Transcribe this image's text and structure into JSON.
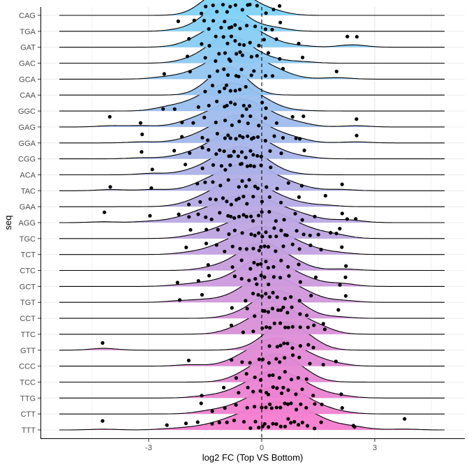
{
  "chart_data": {
    "type": "ridgeline",
    "xlabel": "log2 FC (Top VS Bottom)",
    "ylabel": "seq",
    "xlim": [
      -5.8,
      5.3
    ],
    "x_ticks": [
      {
        "value": -3,
        "label": "-3"
      },
      {
        "value": 0,
        "label": "0"
      },
      {
        "value": 3,
        "label": "3"
      }
    ],
    "reference_line": {
      "x": 0,
      "style": "dashed"
    },
    "grid": true,
    "fill_gradient": {
      "top_color": "#7fd3f7",
      "bottom_color": "#f47ccf"
    },
    "point_color": "#000000",
    "line_color": "#000000",
    "series": [
      {
        "label": "CAG",
        "mean": -0.9,
        "sd": 0.55,
        "points": [
          -1.6,
          -1.5,
          -1.3,
          -1.2,
          -1.0,
          -0.9,
          -0.8,
          -0.7,
          -0.5,
          -0.4,
          -0.3,
          -0.1,
          0.1,
          0.3,
          0.5
        ]
      },
      {
        "label": "TGA",
        "mean": -1.0,
        "sd": 0.5,
        "points": [
          -2.2,
          -1.8,
          -1.5,
          -1.4,
          -1.3,
          -1.1,
          -1.0,
          -0.9,
          -0.8,
          -0.7,
          -0.6,
          -0.4,
          -0.2,
          0.1,
          0.3,
          0.5
        ]
      },
      {
        "label": "GAT",
        "mean": -0.8,
        "sd": 0.7,
        "points": [
          -1.9,
          -1.6,
          -1.4,
          -1.2,
          -1.0,
          -0.9,
          -0.8,
          -0.7,
          -0.6,
          -0.5,
          -0.3,
          -0.1,
          0.1,
          0.4,
          1.0,
          2.3,
          2.5
        ]
      },
      {
        "label": "GAC",
        "mean": -0.9,
        "sd": 0.6,
        "points": [
          -2.0,
          -1.5,
          -1.2,
          -1.1,
          -1.0,
          -0.9,
          -0.8,
          -0.7,
          -0.6,
          -0.5,
          -0.3,
          -0.1,
          0.2,
          0.5,
          1.1
        ]
      },
      {
        "label": "GCA",
        "mean": -0.7,
        "sd": 0.8,
        "points": [
          -2.6,
          -1.9,
          -1.4,
          -1.2,
          -1.0,
          -0.9,
          -0.7,
          -0.6,
          -0.5,
          -0.3,
          -0.2,
          0.1,
          0.3,
          0.6,
          2.0
        ]
      },
      {
        "label": "CAA",
        "mean": -0.9,
        "sd": 0.5,
        "points": [
          -1.5,
          -1.3,
          -1.1,
          -1.0,
          -0.9,
          -0.8,
          -0.7,
          -0.6,
          -0.4
        ]
      },
      {
        "label": "GGC",
        "mean": -0.9,
        "sd": 0.8,
        "points": [
          -2.6,
          -2.3,
          -1.7,
          -1.4,
          -1.2,
          -1.0,
          -0.9,
          -0.8,
          -0.7,
          -0.5,
          -0.4,
          -0.3,
          0.0,
          0.1
        ]
      },
      {
        "label": "GAG",
        "mean": -0.6,
        "sd": 0.8,
        "points": [
          -4.0,
          -3.2,
          -2.1,
          -1.8,
          -1.5,
          -1.2,
          -1.0,
          -0.8,
          -0.6,
          -0.5,
          -0.4,
          -0.3,
          -0.1,
          0.1,
          0.4,
          0.8,
          1.1,
          2.5
        ]
      },
      {
        "label": "GGA",
        "mean": -0.6,
        "sd": 0.8,
        "points": [
          -3.2,
          -2.1,
          -1.6,
          -1.4,
          -1.2,
          -1.0,
          -0.9,
          -0.8,
          -0.7,
          -0.6,
          -0.5,
          -0.4,
          -0.3,
          -0.2,
          -0.1,
          0.1,
          0.3,
          0.6,
          0.9,
          1.0,
          2.5
        ]
      },
      {
        "label": "CGG",
        "mean": -0.6,
        "sd": 0.8,
        "points": [
          -3.2,
          -2.3,
          -1.9,
          -1.6,
          -1.4,
          -1.2,
          -1.1,
          -1.0,
          -0.9,
          -0.8,
          -0.7,
          -0.6,
          -0.5,
          -0.4,
          -0.3,
          -0.2,
          -0.1,
          0.0,
          0.2,
          0.5,
          1.1
        ]
      },
      {
        "label": "ACA",
        "mean": -0.6,
        "sd": 0.7,
        "points": [
          -2.9,
          -2.0,
          -1.6,
          -1.3,
          -1.1,
          -1.0,
          -0.8,
          -0.6,
          -0.5,
          -0.4,
          -0.3,
          -0.2,
          0.0,
          0.2
        ]
      },
      {
        "label": "TAC",
        "mean": -0.4,
        "sd": 0.8,
        "points": [
          -4.0,
          -2.9,
          -1.7,
          -1.5,
          -1.3,
          -1.1,
          -0.9,
          -0.6,
          -0.5,
          -0.4,
          -0.3,
          -0.2,
          -0.1,
          0.1,
          0.4,
          0.7,
          1.1,
          2.1
        ]
      },
      {
        "label": "GAA",
        "mean": -0.5,
        "sd": 0.8,
        "points": [
          -1.9,
          -1.6,
          -1.4,
          -1.2,
          -1.0,
          -0.9,
          -0.8,
          -0.7,
          -0.6,
          -0.5,
          -0.4,
          -0.2,
          0.0,
          0.2,
          0.5,
          1.0,
          1.7
        ]
      },
      {
        "label": "AGG",
        "mean": -0.4,
        "sd": 1.0,
        "points": [
          -4.2,
          -3.0,
          -2.2,
          -1.9,
          -1.7,
          -1.5,
          -1.3,
          -1.1,
          -0.9,
          -0.8,
          -0.7,
          -0.6,
          -0.5,
          -0.4,
          -0.3,
          -0.2,
          -0.1,
          0.0,
          0.2,
          0.4,
          0.6,
          0.9,
          1.1,
          1.4,
          2.1,
          2.3,
          2.5
        ]
      },
      {
        "label": "TGC",
        "mean": 0.0,
        "sd": 0.9,
        "points": [
          -1.9,
          -1.5,
          -1.2,
          -0.9,
          -0.7,
          -0.5,
          -0.3,
          -0.2,
          -0.1,
          0.0,
          0.1,
          0.2,
          0.3,
          0.4,
          0.5,
          0.6,
          0.7,
          0.9,
          1.1,
          1.3,
          1.5,
          1.8,
          2.0,
          2.1
        ]
      },
      {
        "label": "TCT",
        "mean": 0.0,
        "sd": 0.8,
        "points": [
          -2.0,
          -1.5,
          -1.2,
          -1.0,
          -0.8,
          -0.6,
          -0.4,
          -0.2,
          -0.1,
          0.0,
          0.1,
          0.2,
          0.4,
          0.6,
          0.8,
          1.0,
          1.3,
          1.6,
          2.1
        ]
      },
      {
        "label": "CTC",
        "mean": 0.0,
        "sd": 0.7,
        "points": [
          -1.4,
          -0.8,
          -0.5,
          -0.3,
          -0.2,
          -0.1,
          0.0,
          0.1,
          0.2,
          0.3,
          0.5,
          0.7,
          1.0,
          2.2
        ]
      },
      {
        "label": "GCT",
        "mean": 0.1,
        "sd": 0.8,
        "points": [
          -2.2,
          -1.7,
          -1.4,
          -0.7,
          -0.5,
          -0.3,
          -0.2,
          -0.1,
          0.0,
          0.1,
          0.2,
          0.3,
          0.5,
          0.7,
          1.0,
          1.4,
          2.1,
          2.2
        ]
      },
      {
        "label": "TGT",
        "mean": 0.2,
        "sd": 0.8,
        "points": [
          -2.2,
          -1.6,
          -0.4,
          -0.2,
          -0.1,
          0.0,
          0.1,
          0.2,
          0.3,
          0.4,
          0.6,
          0.8,
          1.0,
          1.3,
          2.2
        ]
      },
      {
        "label": "CCT",
        "mean": 0.4,
        "sd": 0.6,
        "points": [
          -0.8,
          -0.4,
          -0.2,
          0.0,
          0.1,
          0.2,
          0.3,
          0.4,
          0.5,
          0.6,
          0.7,
          0.8,
          1.0,
          1.2,
          2.0
        ]
      },
      {
        "label": "TTC",
        "mean": 0.4,
        "sd": 0.7,
        "points": [
          -0.8,
          -0.5,
          -0.2,
          0.0,
          0.1,
          0.2,
          0.3,
          0.5,
          0.6,
          0.7,
          0.8,
          1.0,
          1.2,
          1.4,
          1.6,
          1.7
        ]
      },
      {
        "label": "GTT",
        "mean": 0.6,
        "sd": 0.6,
        "points": [
          -4.2,
          0.2,
          0.4,
          0.5,
          0.6,
          0.7,
          0.8,
          1.0,
          1.2,
          1.4
        ]
      },
      {
        "label": "CCC",
        "mean": 0.4,
        "sd": 0.7,
        "points": [
          -1.9,
          -0.8,
          -0.5,
          -0.3,
          -0.1,
          0.0,
          0.2,
          0.4,
          0.5,
          0.6,
          0.8,
          1.0,
          1.3,
          1.6,
          2.0
        ]
      },
      {
        "label": "TCC",
        "mean": 0.4,
        "sd": 0.6,
        "points": [
          -0.7,
          -0.4,
          -0.2,
          0.0,
          0.2,
          0.3,
          0.5,
          0.6,
          0.8,
          1.0,
          1.2
        ]
      },
      {
        "label": "TTG",
        "mean": 0.4,
        "sd": 0.8,
        "points": [
          -1.6,
          -1.0,
          -0.6,
          -0.4,
          -0.2,
          0.0,
          0.1,
          0.2,
          0.3,
          0.4,
          0.5,
          0.6,
          0.7,
          0.9,
          1.1,
          1.4,
          2.1
        ]
      },
      {
        "label": "CTT",
        "mean": 0.4,
        "sd": 0.8,
        "points": [
          -1.6,
          -1.3,
          -1.0,
          -0.7,
          -0.4,
          -0.2,
          0.0,
          0.1,
          0.2,
          0.3,
          0.4,
          0.5,
          0.6,
          0.7,
          0.8,
          0.9,
          1.0,
          1.2,
          1.4,
          1.6,
          2.1
        ]
      },
      {
        "label": "TTT",
        "mean": 0.4,
        "sd": 1.0,
        "points": [
          -4.2,
          -2.5,
          -2.0,
          -1.7,
          -1.3,
          -1.1,
          -0.9,
          -0.7,
          -0.5,
          -0.3,
          -0.2,
          -0.1,
          0.0,
          0.1,
          0.2,
          0.3,
          0.4,
          0.5,
          0.6,
          0.7,
          0.8,
          0.9,
          1.0,
          1.1,
          1.2,
          1.4,
          1.6,
          2.4,
          2.5,
          3.8
        ]
      }
    ]
  }
}
